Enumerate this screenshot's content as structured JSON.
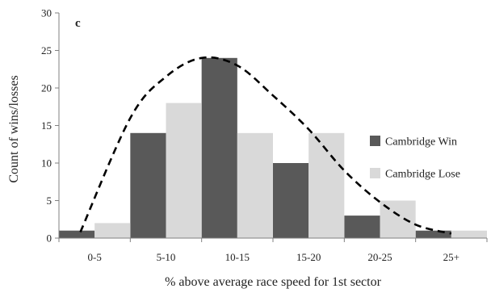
{
  "chart_data": {
    "type": "bar",
    "panel_label": "c",
    "xlabel": "% above average race speed for 1st sector",
    "ylabel": "Count of wins/losses",
    "ylim": [
      0,
      30
    ],
    "yticks": [
      0,
      5,
      10,
      15,
      20,
      25,
      30
    ],
    "categories": [
      "0-5",
      "5-10",
      "10-15",
      "15-20",
      "20-25",
      "25+"
    ],
    "series": [
      {
        "name": "Cambridge Win",
        "color": "#595959",
        "values": [
          1,
          14,
          24,
          10,
          3,
          1
        ]
      },
      {
        "name": "Cambridge Lose",
        "color": "#d9d9d9",
        "values": [
          2,
          18,
          14,
          14,
          5,
          1
        ]
      }
    ],
    "trend_line": {
      "style": "dashed",
      "color": "#000000",
      "x": [
        0.3,
        1,
        1.5,
        2,
        2.5,
        3,
        3.5,
        4,
        4.5,
        5,
        5.5
      ],
      "y": [
        0.8,
        16,
        21.5,
        24,
        23,
        19,
        14.5,
        9,
        4.8,
        1.8,
        0.6
      ]
    },
    "legend_position": "right"
  }
}
